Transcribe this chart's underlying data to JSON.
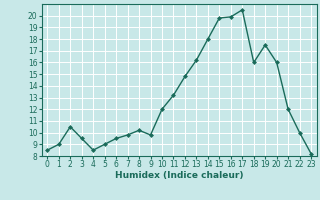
{
  "x": [
    0,
    1,
    2,
    3,
    4,
    5,
    6,
    7,
    8,
    9,
    10,
    11,
    12,
    13,
    14,
    15,
    16,
    17,
    18,
    19,
    20,
    21,
    22,
    23
  ],
  "y": [
    8.5,
    9.0,
    10.5,
    9.5,
    8.5,
    9.0,
    9.5,
    9.8,
    10.2,
    9.8,
    12.0,
    13.2,
    14.8,
    16.2,
    18.0,
    19.8,
    19.9,
    20.5,
    16.0,
    17.5,
    16.0,
    12.0,
    10.0,
    8.2
  ],
  "line_color": "#1a6b5a",
  "marker": "D",
  "marker_size": 2,
  "bg_color": "#c8e8e8",
  "grid_color": "#ffffff",
  "xlabel": "Humidex (Indice chaleur)",
  "ylim": [
    8,
    21
  ],
  "xlim": [
    -0.5,
    23.5
  ],
  "yticks": [
    8,
    9,
    10,
    11,
    12,
    13,
    14,
    15,
    16,
    17,
    18,
    19,
    20
  ],
  "xticks": [
    0,
    1,
    2,
    3,
    4,
    5,
    6,
    7,
    8,
    9,
    10,
    11,
    12,
    13,
    14,
    15,
    16,
    17,
    18,
    19,
    20,
    21,
    22,
    23
  ],
  "tick_fontsize": 5.5,
  "label_fontsize": 6.5,
  "linewidth": 1.0
}
